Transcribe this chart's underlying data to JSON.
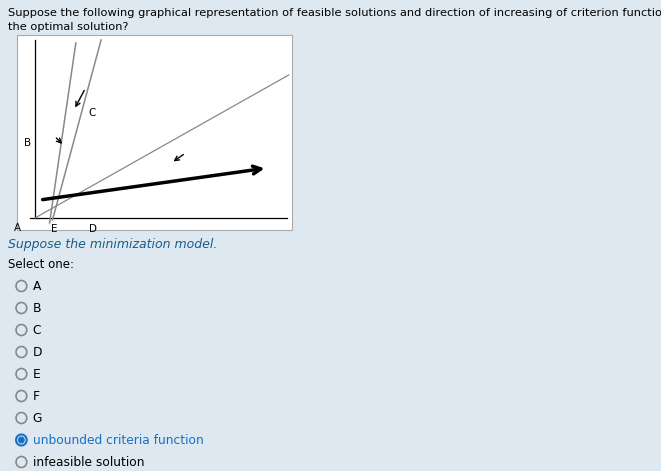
{
  "bg_color": "#dde8f0",
  "plot_bg": "#ffffff",
  "question_text1": "Suppose the following graphical representation of feasible solutions and direction of increasing of criterion function. Which point is",
  "question_text2": "the optimal solution?",
  "subtext": "Suppose the minimization model.",
  "select_text": "Select one:",
  "options": [
    "A",
    "B",
    "C",
    "D",
    "E",
    "F",
    "G",
    "unbounded criteria function",
    "infeasible solution"
  ],
  "selected_index": 7,
  "fig_width": 6.61,
  "fig_height": 4.71,
  "right_sidebar_color": "#2060a0",
  "text_color_question": "#000000",
  "text_color_subtext": "#1a5c8a",
  "text_color_options": "#000000",
  "radio_color_unselected": "#888888",
  "radio_color_selected": "#1a6fc4",
  "option_text_color_selected": "#1a6fc4"
}
